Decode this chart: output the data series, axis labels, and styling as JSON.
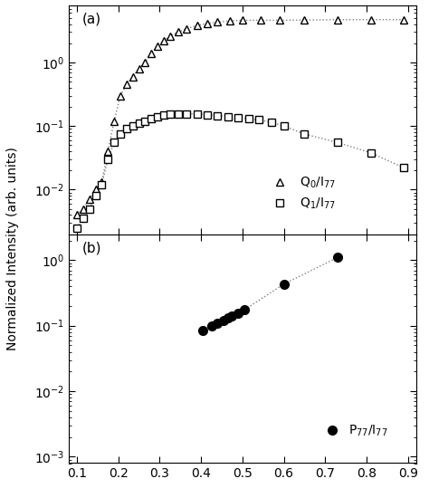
{
  "panel_a_label": "(a)",
  "panel_b_label": "(b)",
  "ylabel": "Normalized Intensity (arb. units)",
  "xlabel_values": [
    0.1,
    0.2,
    0.3,
    0.4,
    0.5,
    0.6,
    0.7,
    0.8,
    0.9
  ],
  "xlim": [
    0.08,
    0.92
  ],
  "Q0_x": [
    0.1,
    0.115,
    0.13,
    0.145,
    0.16,
    0.175,
    0.19,
    0.205,
    0.22,
    0.235,
    0.25,
    0.265,
    0.28,
    0.295,
    0.31,
    0.325,
    0.345,
    0.365,
    0.39,
    0.415,
    0.44,
    0.47,
    0.5,
    0.545,
    0.59,
    0.65,
    0.73,
    0.81,
    0.89
  ],
  "Q0_y": [
    0.004,
    0.005,
    0.007,
    0.01,
    0.013,
    0.04,
    0.12,
    0.3,
    0.45,
    0.6,
    0.8,
    1.0,
    1.4,
    1.8,
    2.2,
    2.6,
    3.0,
    3.4,
    3.8,
    4.1,
    4.3,
    4.5,
    4.6,
    4.6,
    4.6,
    4.65,
    4.7,
    4.7,
    4.7
  ],
  "Q1_x": [
    0.1,
    0.115,
    0.13,
    0.145,
    0.16,
    0.175,
    0.19,
    0.205,
    0.22,
    0.235,
    0.25,
    0.265,
    0.28,
    0.295,
    0.31,
    0.325,
    0.345,
    0.365,
    0.39,
    0.415,
    0.44,
    0.465,
    0.49,
    0.515,
    0.54,
    0.57,
    0.6,
    0.65,
    0.73,
    0.81,
    0.89
  ],
  "Q1_y": [
    0.0025,
    0.0035,
    0.005,
    0.008,
    0.012,
    0.03,
    0.055,
    0.075,
    0.09,
    0.1,
    0.11,
    0.12,
    0.13,
    0.14,
    0.15,
    0.155,
    0.155,
    0.155,
    0.155,
    0.15,
    0.145,
    0.14,
    0.135,
    0.13,
    0.125,
    0.115,
    0.1,
    0.075,
    0.055,
    0.038,
    0.022
  ],
  "P77_x": [
    0.405,
    0.425,
    0.44,
    0.455,
    0.465,
    0.475,
    0.49,
    0.505,
    0.6,
    0.73
  ],
  "P77_y": [
    0.085,
    0.1,
    0.11,
    0.12,
    0.13,
    0.14,
    0.155,
    0.175,
    0.43,
    1.1
  ],
  "legend_Q0": "Q$_0$/I$_{77}$",
  "legend_Q1": "Q$_1$/I$_{77}$",
  "legend_P77": "P$_{77}$/I$_{77}$",
  "ylim_a": [
    0.002,
    8.0
  ],
  "ylim_b": [
    0.0008,
    2.5
  ],
  "figsize": [
    4.74,
    5.5
  ]
}
